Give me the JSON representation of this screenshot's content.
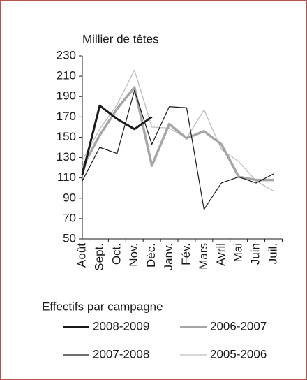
{
  "chart_data": {
    "type": "line",
    "y_label": "Millier de têtes",
    "legend_title": "Effectifs par campagne",
    "categories": [
      "Août",
      "Sept.",
      "Oct.",
      "Nov.",
      "Déc.",
      "Janv.",
      "Fév.",
      "Mars",
      "Avril",
      "Mai",
      "Juin",
      "Juil."
    ],
    "series": [
      {
        "name": "2008-2009",
        "color": "#1a1a1a",
        "width": 3,
        "values": [
          113,
          181,
          168,
          158,
          170,
          null,
          null,
          null,
          null,
          null,
          null,
          null
        ]
      },
      {
        "name": "2007-2008",
        "color": "#1a1a1a",
        "width": 1.2,
        "values": [
          107,
          140,
          134,
          196,
          143,
          180,
          179,
          79,
          105,
          111,
          105,
          114
        ]
      },
      {
        "name": "2006-2007",
        "color": "#a6a6a6",
        "width": 3.5,
        "values": [
          120,
          152,
          178,
          199,
          122,
          163,
          149,
          156,
          143,
          111,
          108,
          108
        ]
      },
      {
        "name": "2005-2006",
        "color": "#bdbdbd",
        "width": 1.3,
        "values": [
          127,
          158,
          182,
          216,
          160,
          159,
          149,
          177,
          138,
          126,
          107,
          97
        ]
      }
    ],
    "ylim": [
      50,
      230
    ],
    "yticks": [
      50,
      70,
      90,
      110,
      130,
      150,
      170,
      190,
      210,
      230
    ]
  }
}
